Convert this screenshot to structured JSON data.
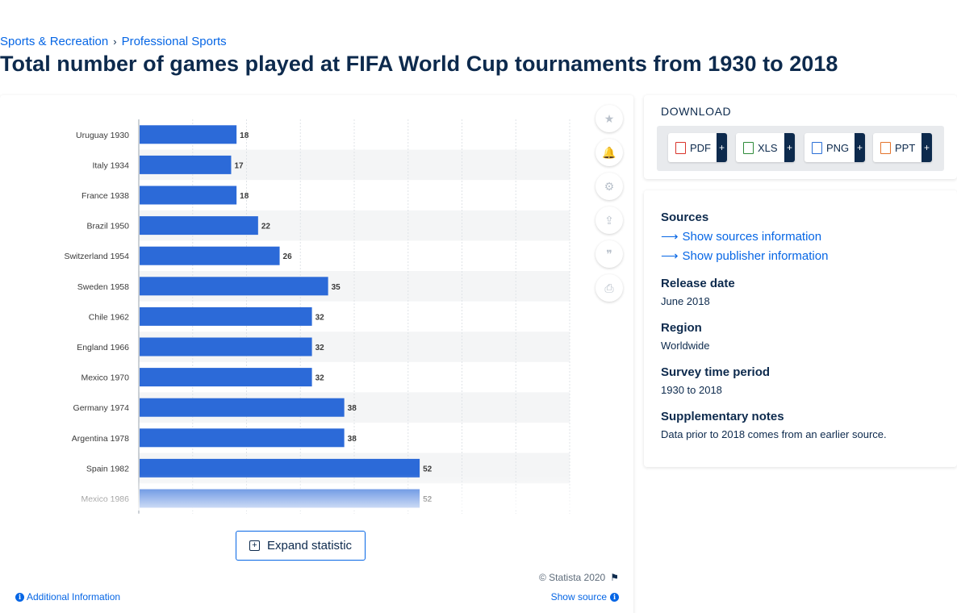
{
  "breadcrumb": {
    "items": [
      "Sports & Recreation",
      "Professional Sports"
    ],
    "separator": "›"
  },
  "page_title": "Total number of games played at FIFA World Cup tournaments from 1930 to 2018",
  "chart_data": {
    "type": "bar",
    "orientation": "horizontal",
    "categories": [
      "Uruguay 1930",
      "Italy 1934",
      "France 1938",
      "Brazil 1950",
      "Switzerland 1954",
      "Sweden 1958",
      "Chile 1962",
      "England 1966",
      "Mexico 1970",
      "Germany 1974",
      "Argentina 1978",
      "Spain 1982",
      "Mexico 1986"
    ],
    "values": [
      18,
      17,
      18,
      22,
      26,
      35,
      32,
      32,
      32,
      38,
      38,
      52,
      52
    ],
    "xlim": [
      0,
      80
    ],
    "grid": true,
    "bar_color": "#2c6ad8",
    "title": "",
    "xlabel": "",
    "ylabel": ""
  },
  "tools": {
    "icons": [
      "star-icon",
      "bell-icon",
      "gear-icon",
      "share-icon",
      "quote-icon",
      "print-icon"
    ],
    "glyphs": [
      "★",
      "🔔",
      "⚙",
      "⇪",
      "❞",
      "⎙"
    ]
  },
  "expand": {
    "label": "Expand statistic",
    "icon": "plus-square-icon"
  },
  "footer": {
    "copyright": "© Statista 2020",
    "additional_info": "Additional Information",
    "show_source": "Show source"
  },
  "download": {
    "title": "DOWNLOAD",
    "formats": [
      {
        "label": "PDF",
        "color": "#d9342b"
      },
      {
        "label": "XLS",
        "color": "#2e8b3a"
      },
      {
        "label": "PNG",
        "color": "#2a6fd6"
      },
      {
        "label": "PPT",
        "color": "#e4742b"
      }
    ],
    "plus": "+"
  },
  "meta": {
    "sources_heading": "Sources",
    "show_sources": "Show sources information",
    "show_publisher": "Show publisher information",
    "release_heading": "Release date",
    "release_value": "June 2018",
    "region_heading": "Region",
    "region_value": "Worldwide",
    "survey_heading": "Survey time period",
    "survey_value": "1930 to 2018",
    "notes_heading": "Supplementary notes",
    "notes_value": "Data prior to 2018 comes from an earlier source."
  }
}
